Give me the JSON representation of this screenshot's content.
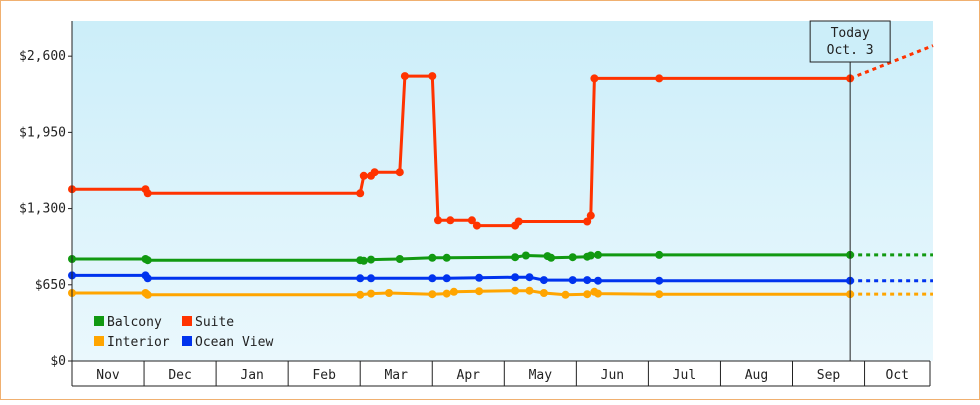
{
  "chart_data": {
    "type": "line",
    "y_axis": {
      "ticks": [
        0,
        650,
        1300,
        1950,
        2600
      ],
      "tick_labels": [
        "$0",
        "$650",
        "$1,300",
        "$1,950",
        "$2,600"
      ],
      "ylim": [
        0,
        2900
      ]
    },
    "x_axis": {
      "months": [
        "Nov",
        "Dec",
        "Jan",
        "Feb",
        "Mar",
        "Apr",
        "May",
        "Jun",
        "Jul",
        "Aug",
        "Sep",
        "Oct"
      ],
      "xlim": [
        0,
        11.95
      ]
    },
    "today_marker": {
      "line1": "Today",
      "line2": "Oct. 3",
      "x": 10.8
    },
    "grid": false,
    "legend_position": "bottom-left",
    "colors": {
      "Balcony": "#119911",
      "Suite": "#ff3300",
      "Interior": "#ffa500",
      "Ocean View": "#0033ee",
      "background_top": "#cceef9",
      "background_bottom": "#eaf8fd",
      "frame_border": "#f0b070"
    },
    "series": [
      {
        "name": "Suite",
        "style": "step",
        "points": [
          [
            0,
            1465
          ],
          [
            1.02,
            1465
          ],
          [
            1.05,
            1430
          ],
          [
            4.0,
            1430
          ],
          [
            4.05,
            1580
          ],
          [
            4.15,
            1580
          ],
          [
            4.2,
            1610
          ],
          [
            4.55,
            1610
          ],
          [
            4.62,
            2430
          ],
          [
            5.0,
            2430
          ],
          [
            5.08,
            1200
          ],
          [
            5.25,
            1200
          ],
          [
            5.55,
            1200
          ],
          [
            5.62,
            1155
          ],
          [
            6.15,
            1155
          ],
          [
            6.2,
            1190
          ],
          [
            7.15,
            1190
          ],
          [
            7.2,
            1240
          ],
          [
            7.25,
            2410
          ],
          [
            8.15,
            2410
          ],
          [
            10.8,
            2410
          ]
        ],
        "projection": [
          [
            10.8,
            2410
          ],
          [
            11.95,
            2690
          ]
        ]
      },
      {
        "name": "Balcony",
        "style": "step",
        "points": [
          [
            0,
            870
          ],
          [
            1.02,
            870
          ],
          [
            1.05,
            860
          ],
          [
            4.0,
            860
          ],
          [
            4.05,
            855
          ],
          [
            4.15,
            865
          ],
          [
            4.55,
            870
          ],
          [
            5.0,
            880
          ],
          [
            5.2,
            880
          ],
          [
            6.15,
            885
          ],
          [
            6.3,
            900
          ],
          [
            6.6,
            895
          ],
          [
            6.65,
            880
          ],
          [
            6.95,
            885
          ],
          [
            7.15,
            890
          ],
          [
            7.2,
            900
          ],
          [
            7.3,
            905
          ],
          [
            8.15,
            905
          ],
          [
            10.8,
            905
          ]
        ],
        "projection": [
          [
            10.8,
            905
          ],
          [
            11.95,
            905
          ]
        ]
      },
      {
        "name": "Ocean View",
        "style": "step",
        "points": [
          [
            0,
            730
          ],
          [
            1.02,
            730
          ],
          [
            1.05,
            705
          ],
          [
            4.0,
            705
          ],
          [
            4.15,
            705
          ],
          [
            5.0,
            705
          ],
          [
            5.2,
            705
          ],
          [
            5.65,
            710
          ],
          [
            6.15,
            715
          ],
          [
            6.35,
            715
          ],
          [
            6.55,
            690
          ],
          [
            6.95,
            690
          ],
          [
            7.15,
            690
          ],
          [
            7.3,
            685
          ],
          [
            8.15,
            685
          ],
          [
            10.8,
            685
          ]
        ],
        "projection": [
          [
            10.8,
            685
          ],
          [
            11.95,
            685
          ]
        ]
      },
      {
        "name": "Interior",
        "style": "step",
        "points": [
          [
            0,
            580
          ],
          [
            1.02,
            580
          ],
          [
            1.05,
            565
          ],
          [
            4.0,
            565
          ],
          [
            4.15,
            575
          ],
          [
            4.4,
            580
          ],
          [
            5.0,
            570
          ],
          [
            5.2,
            575
          ],
          [
            5.3,
            590
          ],
          [
            5.65,
            595
          ],
          [
            6.15,
            600
          ],
          [
            6.35,
            600
          ],
          [
            6.55,
            580
          ],
          [
            6.85,
            565
          ],
          [
            7.15,
            570
          ],
          [
            7.25,
            590
          ],
          [
            7.3,
            575
          ],
          [
            8.15,
            570
          ],
          [
            10.8,
            570
          ]
        ],
        "projection": [
          [
            10.8,
            570
          ],
          [
            11.95,
            570
          ]
        ]
      }
    ],
    "legend": [
      {
        "name": "Balcony"
      },
      {
        "name": "Suite"
      },
      {
        "name": "Interior"
      },
      {
        "name": "Ocean View"
      }
    ]
  }
}
